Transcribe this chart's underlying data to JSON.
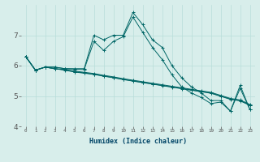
{
  "xlabel": "Humidex (Indice chaleur)",
  "ylabel": "",
  "xlim": [
    -0.5,
    23.5
  ],
  "ylim": [
    4,
    8
  ],
  "yticks": [
    4,
    5,
    6,
    7
  ],
  "xtick_labels": [
    "0",
    "1",
    "2",
    "3",
    "4",
    "5",
    "6",
    "7",
    "8",
    "9",
    "10",
    "11",
    "12",
    "13",
    "14",
    "15",
    "16",
    "17",
    "18",
    "19",
    "20",
    "21",
    "22",
    "23"
  ],
  "background_color": "#d8eeeb",
  "grid_color": "#b8ddd9",
  "line_color": "#006666",
  "lines": [
    [
      6.3,
      5.85,
      5.95,
      5.95,
      5.9,
      5.9,
      5.9,
      7.0,
      6.85,
      7.0,
      7.0,
      7.75,
      7.35,
      6.85,
      6.6,
      6.0,
      5.6,
      5.3,
      5.1,
      4.85,
      4.85,
      4.5,
      5.35,
      4.55
    ],
    [
      6.3,
      5.85,
      5.95,
      5.95,
      5.9,
      5.88,
      5.87,
      6.8,
      6.5,
      6.8,
      6.95,
      7.6,
      7.1,
      6.6,
      6.2,
      5.7,
      5.3,
      5.1,
      4.95,
      4.75,
      4.8,
      4.5,
      5.25,
      4.55
    ],
    [
      6.3,
      5.85,
      5.95,
      5.9,
      5.87,
      5.82,
      5.78,
      5.74,
      5.68,
      5.63,
      5.57,
      5.52,
      5.47,
      5.42,
      5.37,
      5.32,
      5.27,
      5.22,
      5.17,
      5.12,
      5.02,
      4.92,
      4.87,
      4.72
    ],
    [
      6.3,
      5.85,
      5.95,
      5.9,
      5.86,
      5.8,
      5.76,
      5.72,
      5.66,
      5.61,
      5.55,
      5.5,
      5.45,
      5.4,
      5.35,
      5.3,
      5.25,
      5.2,
      5.15,
      5.1,
      5.0,
      4.9,
      4.85,
      4.7
    ],
    [
      6.3,
      5.85,
      5.95,
      5.9,
      5.85,
      5.79,
      5.75,
      5.71,
      5.65,
      5.6,
      5.54,
      5.49,
      5.44,
      5.39,
      5.34,
      5.29,
      5.24,
      5.19,
      5.14,
      5.09,
      4.99,
      4.89,
      4.84,
      4.69
    ]
  ]
}
